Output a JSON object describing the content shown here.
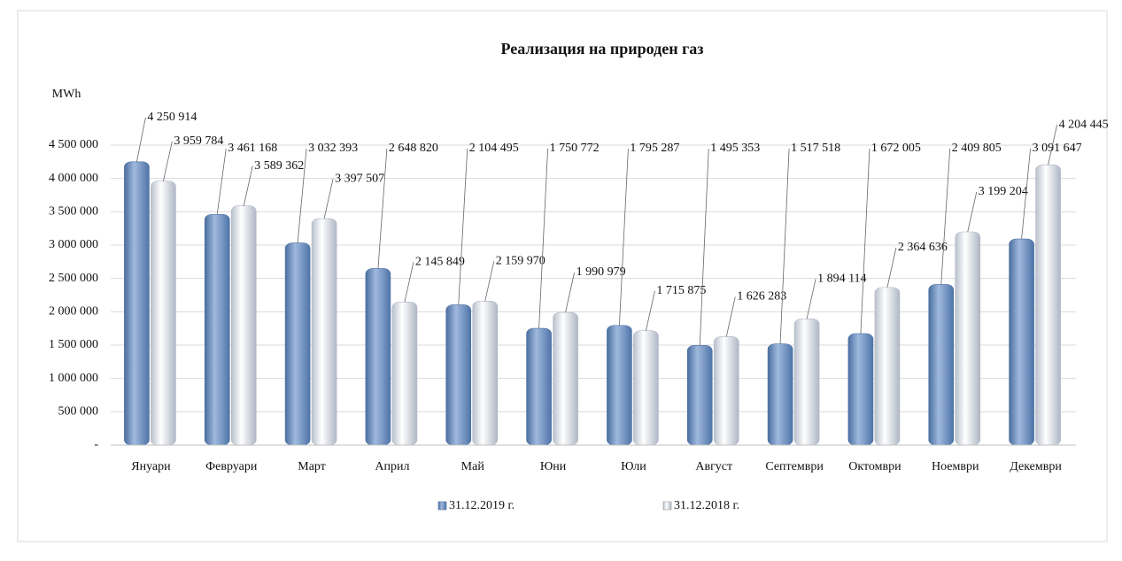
{
  "chart_data": {
    "type": "bar",
    "title": "Реализация на природен газ",
    "y_label": "MWh",
    "categories": [
      "Януари",
      "Февруари",
      "Март",
      "Април",
      "Май",
      "Юни",
      "Юли",
      "Август",
      "Септември",
      "Октомври",
      "Ноември",
      "Декември"
    ],
    "series": [
      {
        "name": "31.12.2019 г.",
        "color": "#6f93c4",
        "values": [
          4250914,
          3461168,
          3032393,
          2648820,
          2104495,
          1750772,
          1795287,
          1495353,
          1517518,
          1672005,
          2409805,
          3091647
        ],
        "value_labels": [
          "4 250 914",
          "3 461 168",
          "3 032 393",
          "2 648 820",
          "2 104 495",
          "1 750 772",
          "1 795 287",
          "1 495 353",
          "1 517 518",
          "1 672 005",
          "2 409 805",
          "3 091 647"
        ]
      },
      {
        "name": "31.12.2018 г.",
        "color": "#dfe4ec",
        "values": [
          3959784,
          3589362,
          3397507,
          2145849,
          2159970,
          1990979,
          1715875,
          1626283,
          1894114,
          2364636,
          3199204,
          4204445
        ],
        "value_labels": [
          "3 959 784",
          "3 589 362",
          "3 397 507",
          "2 145 849",
          "2 159 970",
          "1 990 979",
          "1 715 875",
          "1 626 283",
          "1 894 114",
          "2 364 636",
          "3 199 204",
          "4 204 445"
        ]
      }
    ],
    "ylim": [
      0,
      4500000
    ],
    "yticks": [
      {
        "value": 0,
        "label": "-"
      },
      {
        "value": 500000,
        "label": "500 000"
      },
      {
        "value": 1000000,
        "label": "1 000 000"
      },
      {
        "value": 1500000,
        "label": "1 500 000"
      },
      {
        "value": 2000000,
        "label": "2 000 000"
      },
      {
        "value": 2500000,
        "label": "2 500 000"
      },
      {
        "value": 3000000,
        "label": "3 000 000"
      },
      {
        "value": 3500000,
        "label": "3 500 000"
      },
      {
        "value": 4000000,
        "label": "4 000 000"
      },
      {
        "value": 4500000,
        "label": "4 500 000"
      }
    ],
    "grid": true,
    "legend": "bottom"
  }
}
